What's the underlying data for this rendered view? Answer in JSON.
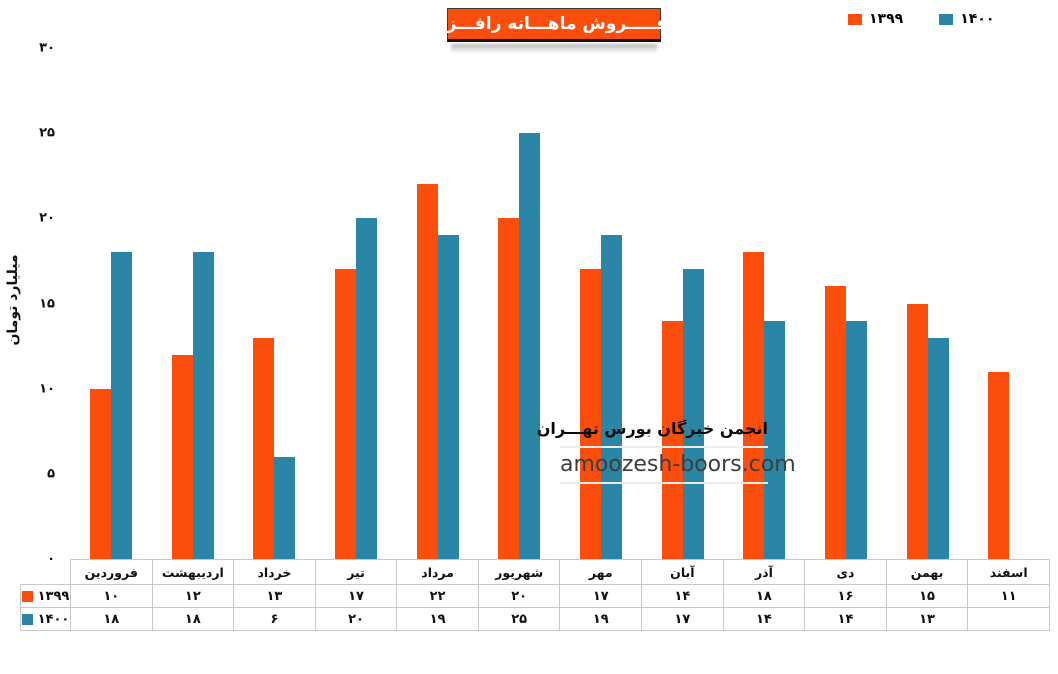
{
  "chart_data": {
    "type": "bar",
    "title": "فـــــروش ماهـــانه رافـــزا",
    "ylabel": "میلیارد تومان",
    "ylim": [
      0,
      30
    ],
    "grid": false,
    "legend_position": "top-right",
    "yticks": [
      {
        "value": 0,
        "label": "۰"
      },
      {
        "value": 5,
        "label": "۵"
      },
      {
        "value": 10,
        "label": "۱۰"
      },
      {
        "value": 15,
        "label": "۱۵"
      },
      {
        "value": 20,
        "label": "۲۰"
      },
      {
        "value": 25,
        "label": "۲۵"
      },
      {
        "value": 30,
        "label": "۳۰"
      }
    ],
    "categories": [
      "فروردین",
      "اردیبهشت",
      "خرداد",
      "تیر",
      "مرداد",
      "شهریور",
      "مهر",
      "آبان",
      "آذر",
      "دی",
      "بهمن",
      "اسفند"
    ],
    "series": [
      {
        "name": "۱۳۹۹",
        "color": "#FB4E0D",
        "values": [
          10,
          12,
          13,
          17,
          22,
          20,
          17,
          14,
          18,
          16,
          15,
          11
        ],
        "value_labels": [
          "۱۰",
          "۱۲",
          "۱۳",
          "۱۷",
          "۲۲",
          "۲۰",
          "۱۷",
          "۱۴",
          "۱۸",
          "۱۶",
          "۱۵",
          "۱۱"
        ]
      },
      {
        "name": "۱۴۰۰",
        "color": "#2B86A6",
        "values": [
          18,
          18,
          6,
          20,
          19,
          25,
          19,
          17,
          14,
          14,
          13,
          null
        ],
        "value_labels": [
          "۱۸",
          "۱۸",
          "۶",
          "۲۰",
          "۱۹",
          "۲۵",
          "۱۹",
          "۱۷",
          "۱۴",
          "۱۴",
          "۱۳",
          ""
        ]
      }
    ]
  },
  "watermark": {
    "line1": "انجمن خبرگان بورس تهـــران",
    "line2": "amoozesh-boors.com"
  },
  "colors": {
    "series_1399": "#FB4E0D",
    "series_1400": "#2B86A6",
    "title_bg": "#FB4E0D",
    "table_border": "#C9C9C9"
  }
}
